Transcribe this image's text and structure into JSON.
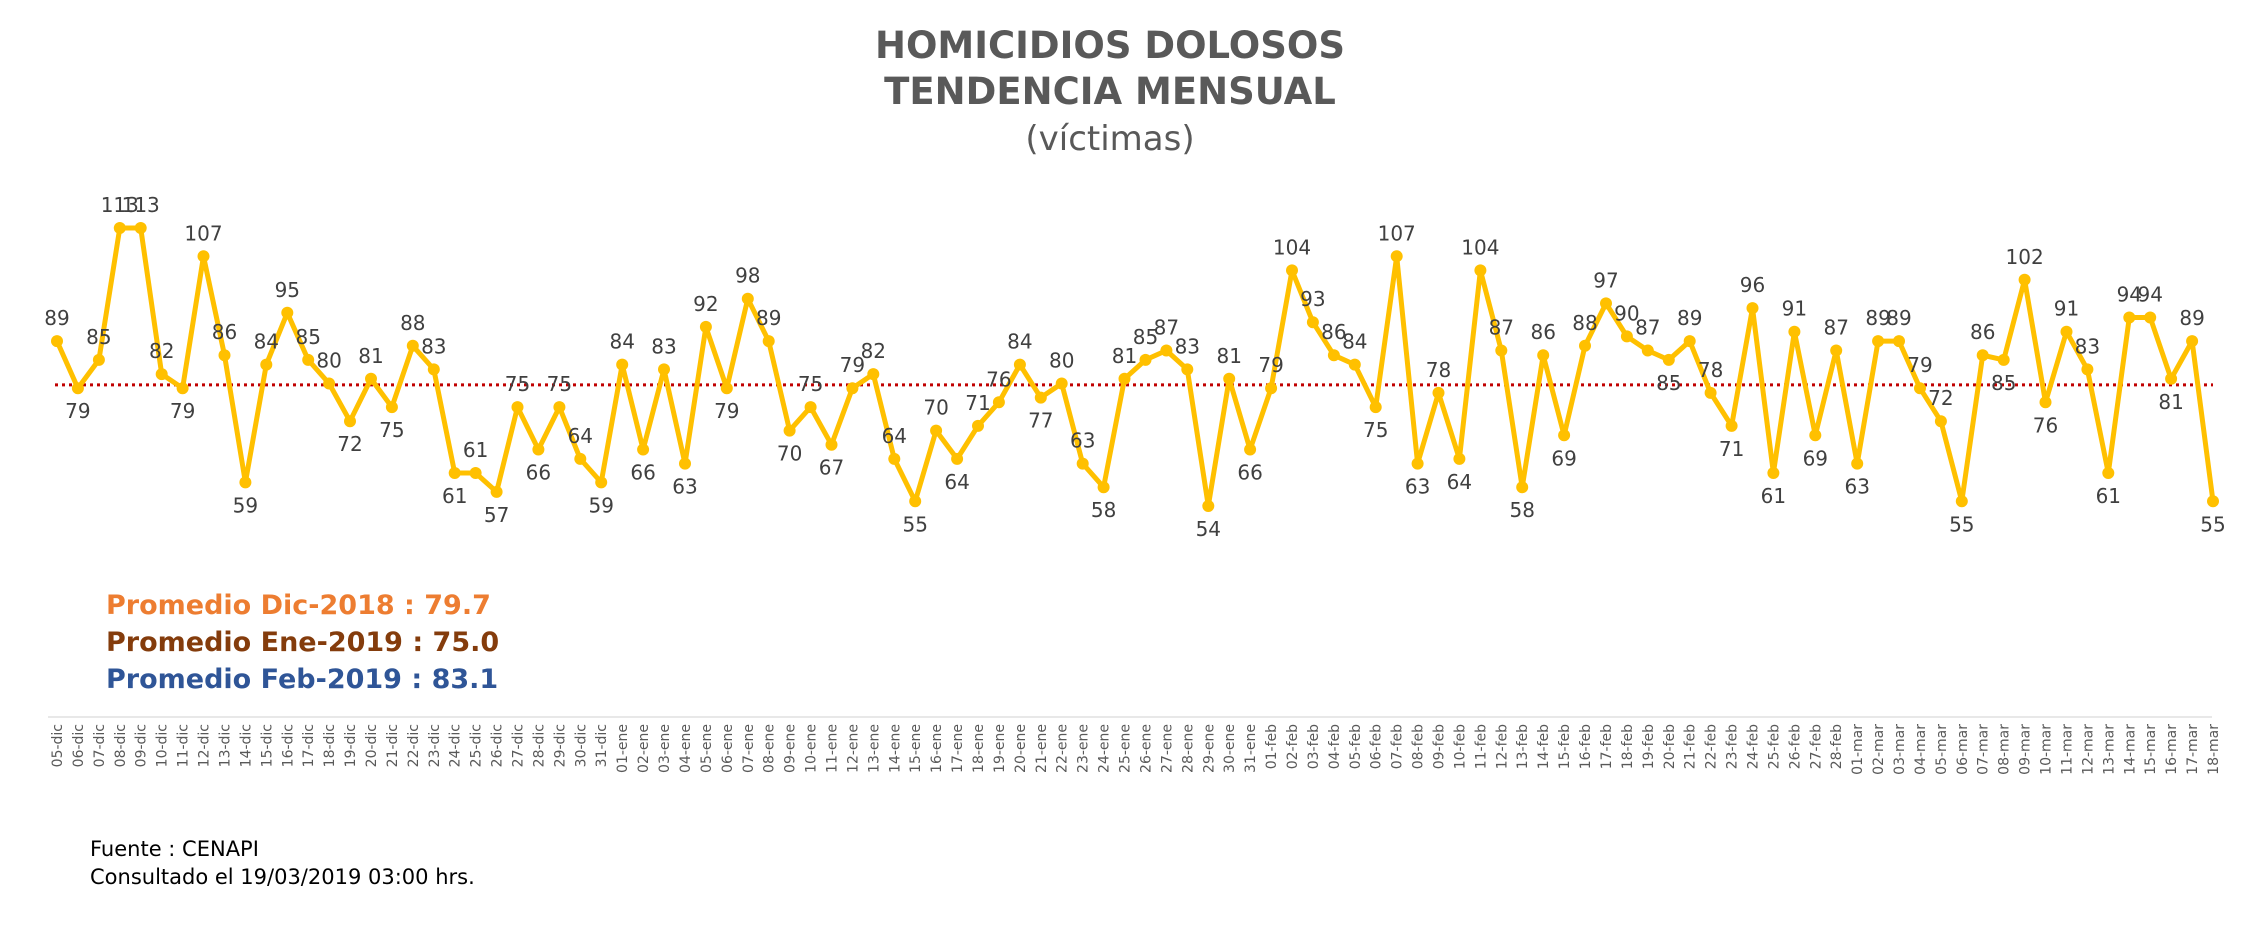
{
  "chart_data": {
    "type": "line",
    "title": "HOMICIDIOS DOLOSOS",
    "subtitle_line2": "TENDENCIA MENSUAL",
    "unit_label": "(víctimas)",
    "categories": [
      "05-dic",
      "06-dic",
      "07-dic",
      "08-dic",
      "09-dic",
      "10-dic",
      "11-dic",
      "12-dic",
      "13-dic",
      "14-dic",
      "15-dic",
      "16-dic",
      "17-dic",
      "18-dic",
      "19-dic",
      "20-dic",
      "21-dic",
      "22-dic",
      "23-dic",
      "24-dic",
      "25-dic",
      "26-dic",
      "27-dic",
      "28-dic",
      "29-dic",
      "30-dic",
      "31-dic",
      "01-ene",
      "02-ene",
      "03-ene",
      "04-ene",
      "05-ene",
      "06-ene",
      "07-ene",
      "08-ene",
      "09-ene",
      "10-ene",
      "11-ene",
      "12-ene",
      "13-ene",
      "14-ene",
      "15-ene",
      "16-ene",
      "17-ene",
      "18-ene",
      "19-ene",
      "20-ene",
      "21-ene",
      "22-ene",
      "23-ene",
      "24-ene",
      "25-ene",
      "26-ene",
      "27-ene",
      "28-ene",
      "29-ene",
      "30-ene",
      "31-ene",
      "01-feb",
      "02-feb",
      "03-feb",
      "04-feb",
      "05-feb",
      "06-feb",
      "07-feb",
      "08-feb",
      "09-feb",
      "10-feb",
      "11-feb",
      "12-feb",
      "13-feb",
      "14-feb",
      "15-feb",
      "16-feb",
      "17-feb",
      "18-feb",
      "19-feb",
      "20-feb",
      "21-feb",
      "22-feb",
      "23-feb",
      "24-feb",
      "25-feb",
      "26-feb",
      "27-feb",
      "28-feb",
      "01-mar",
      "02-mar",
      "03-mar",
      "04-mar",
      "05-mar",
      "06-mar",
      "07-mar",
      "08-mar",
      "09-mar",
      "10-mar",
      "11-mar",
      "12-mar",
      "13-mar",
      "14-mar",
      "15-mar",
      "16-mar",
      "17-mar",
      "18-mar"
    ],
    "values": [
      89,
      79,
      85,
      113,
      113,
      82,
      79,
      107,
      86,
      59,
      84,
      95,
      85,
      80,
      72,
      81,
      75,
      88,
      83,
      61,
      61,
      57,
      75,
      66,
      75,
      64,
      59,
      84,
      66,
      83,
      63,
      92,
      79,
      98,
      89,
      70,
      75,
      67,
      79,
      82,
      64,
      55,
      70,
      64,
      71,
      76,
      84,
      77,
      80,
      63,
      58,
      81,
      85,
      87,
      83,
      54,
      81,
      66,
      79,
      104,
      93,
      86,
      84,
      75,
      107,
      63,
      78,
      64,
      104,
      87,
      58,
      86,
      69,
      88,
      97,
      90,
      87,
      85,
      89,
      78,
      71,
      96,
      61,
      91,
      69,
      87,
      63,
      89,
      89,
      79,
      72,
      55,
      86,
      85,
      102,
      76,
      91,
      83,
      61,
      94,
      94,
      81,
      89,
      55
    ],
    "reference_line": {
      "value": 79.7,
      "style": "dotted",
      "color": "#C00000"
    },
    "ylim": [
      40,
      125
    ],
    "line_color": "#FFC000",
    "grid": false
  },
  "averages": [
    {
      "label": "Promedio Dic-2018  : 79.7",
      "color": "#ED7D31"
    },
    {
      "label": "Promedio Ene-2019 : 75.0",
      "color": "#843C0C"
    },
    {
      "label": "Promedio Feb-2019 : 83.1",
      "color": "#2F5597"
    }
  ],
  "source": {
    "line1": "Fuente : CENAPI",
    "line2": "Consultado el 19/03/2019  03:00 hrs."
  }
}
